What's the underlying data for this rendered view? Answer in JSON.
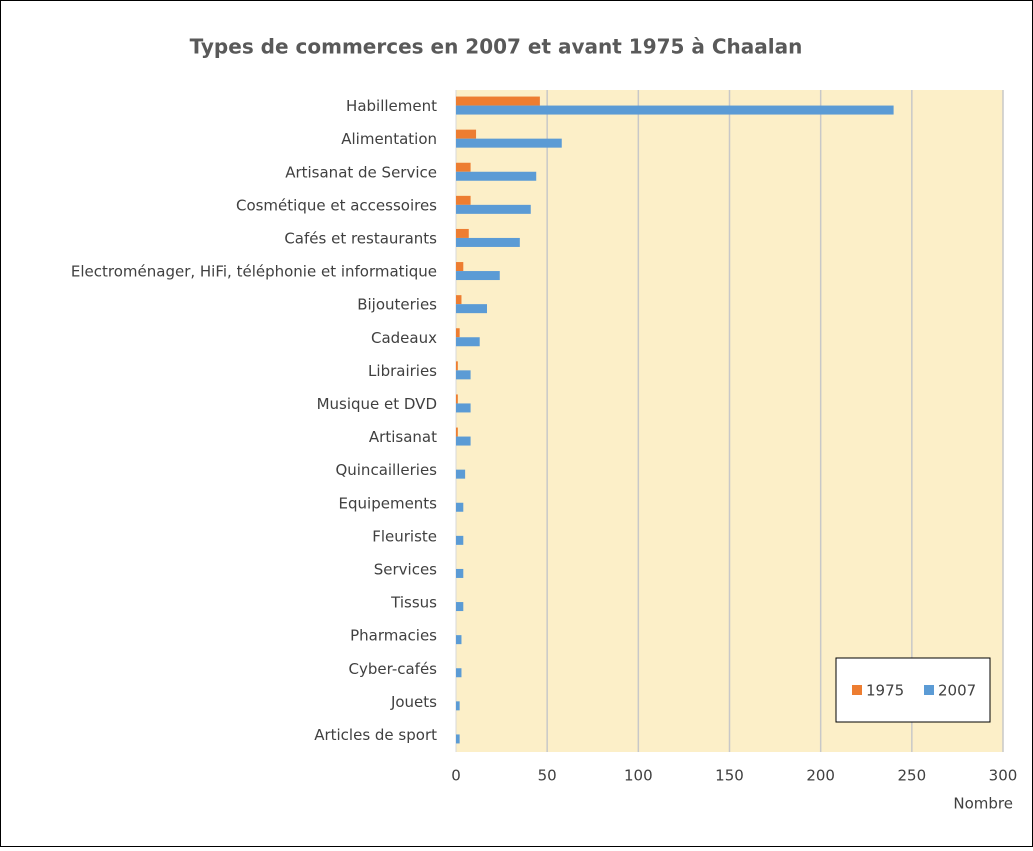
{
  "chart_data": {
    "type": "hbar",
    "title": "Types de commerces en 2007 et avant 1975 à Chaalan",
    "xlabel": "Nombre",
    "categories": [
      "Habillement",
      "Alimentation",
      "Artisanat de Service",
      "Cosmétique et accessoires",
      "Cafés et restaurants",
      "Electroménager, HiFi, téléphonie et informatique",
      "Bijouteries",
      "Cadeaux",
      "Librairies",
      "Musique et DVD",
      "Artisanat",
      "Quincailleries",
      "Equipements",
      "Fleuriste",
      "Services",
      "Tissus",
      "Pharmacies",
      "Cyber-cafés",
      "Jouets",
      "Articles de sport"
    ],
    "series": [
      {
        "name": "1975",
        "color": "#ed7d31",
        "values": [
          46,
          11,
          8,
          8,
          7,
          4,
          3,
          2,
          1,
          1,
          1,
          0,
          0,
          0,
          0,
          0,
          0,
          0,
          0,
          0
        ]
      },
      {
        "name": "2007",
        "color": "#5b9bd5",
        "values": [
          240,
          58,
          44,
          41,
          35,
          24,
          17,
          13,
          8,
          8,
          8,
          5,
          4,
          4,
          4,
          4,
          3,
          3,
          2,
          2
        ]
      }
    ],
    "xlim": [
      0,
      300
    ],
    "xticks": [
      0,
      50,
      100,
      150,
      200,
      250,
      300
    ],
    "grid": true,
    "legend": "lower right",
    "plot_background": "#fcefc8"
  }
}
